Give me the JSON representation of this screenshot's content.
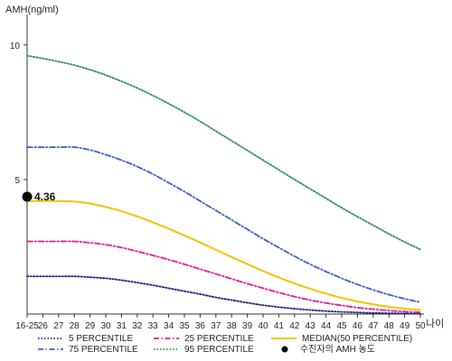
{
  "chart_data": {
    "type": "line",
    "ylabel": "AMH(ng/ml)",
    "xlabel": "나이",
    "ylim": [
      0,
      11
    ],
    "y_ticks": [
      5,
      10
    ],
    "categories": [
      "16-25",
      "26",
      "27",
      "28",
      "29",
      "30",
      "31",
      "32",
      "33",
      "34",
      "35",
      "36",
      "37",
      "38",
      "39",
      "40",
      "41",
      "42",
      "43",
      "44",
      "45",
      "46",
      "47",
      "48",
      "49",
      "50"
    ],
    "grid": false,
    "legend_placement": "bottom",
    "series": [
      {
        "name": "5 PERCENTILE",
        "color": "#1a1a7a",
        "dash": "dotted",
        "values": [
          1.4,
          1.4,
          1.4,
          1.4,
          1.37,
          1.33,
          1.26,
          1.17,
          1.07,
          0.96,
          0.85,
          0.74,
          0.62,
          0.52,
          0.42,
          0.33,
          0.26,
          0.2,
          0.15,
          0.11,
          0.08,
          0.06,
          0.04,
          0.03,
          0.02,
          0.01
        ]
      },
      {
        "name": "25 PERCENTILE",
        "color": "#e0198c",
        "dash": "dash-dot",
        "values": [
          2.7,
          2.7,
          2.7,
          2.7,
          2.65,
          2.58,
          2.47,
          2.33,
          2.18,
          2.02,
          1.85,
          1.67,
          1.49,
          1.31,
          1.13,
          0.96,
          0.8,
          0.65,
          0.52,
          0.41,
          0.32,
          0.24,
          0.18,
          0.13,
          0.09,
          0.06
        ]
      },
      {
        "name": "MEDIAN(50 PERCENTILE)",
        "color": "#f2c200",
        "dash": "solid",
        "values": [
          4.2,
          4.2,
          4.2,
          4.18,
          4.11,
          3.98,
          3.82,
          3.63,
          3.41,
          3.17,
          2.92,
          2.66,
          2.39,
          2.12,
          1.86,
          1.6,
          1.36,
          1.14,
          0.94,
          0.76,
          0.6,
          0.47,
          0.36,
          0.27,
          0.2,
          0.15
        ]
      },
      {
        "name": "75 PERCENTILE",
        "color": "#3b5cc4",
        "dash": "dash-dot",
        "values": [
          6.2,
          6.2,
          6.2,
          6.2,
          6.1,
          5.92,
          5.72,
          5.48,
          5.2,
          4.88,
          4.55,
          4.2,
          3.85,
          3.5,
          3.15,
          2.8,
          2.47,
          2.15,
          1.85,
          1.58,
          1.33,
          1.1,
          0.9,
          0.72,
          0.57,
          0.44
        ]
      },
      {
        "name": "95 PERCENTILE",
        "color": "#2e8b57",
        "dash": "dotted",
        "values": [
          9.6,
          9.5,
          9.38,
          9.25,
          9.08,
          8.88,
          8.65,
          8.4,
          8.12,
          7.82,
          7.5,
          7.16,
          6.8,
          6.44,
          6.08,
          5.72,
          5.36,
          5.0,
          4.65,
          4.3,
          3.95,
          3.62,
          3.3,
          2.98,
          2.68,
          2.4
        ]
      }
    ],
    "marker": {
      "label": "4.36",
      "x": "16-25",
      "y": 4.36,
      "legend_text": "수진자의 AMH 농도",
      "color": "#000000"
    }
  }
}
